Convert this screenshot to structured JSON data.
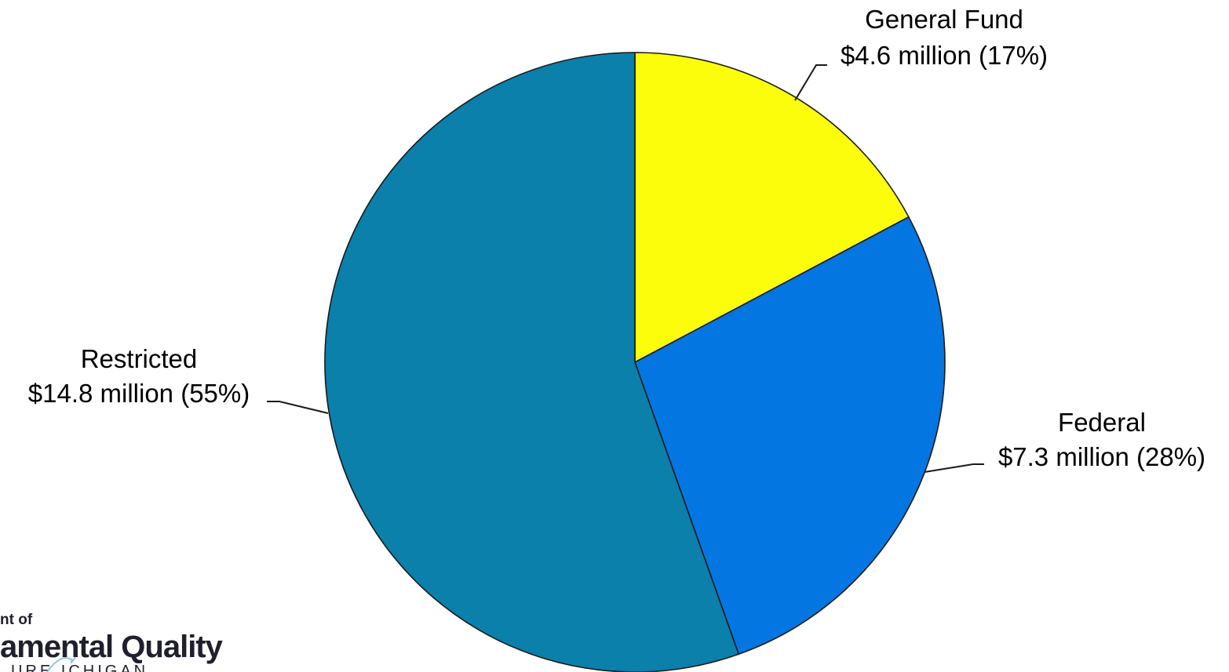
{
  "chart_data": {
    "type": "pie",
    "slices": [
      {
        "label": "General Fund",
        "value_text": "$4.6 million (17%)",
        "value": 4.6,
        "percent": 17,
        "color": "#fbfd0a"
      },
      {
        "label": "Federal",
        "value_text": "$7.3 million (28%)",
        "value": 7.3,
        "percent": 28,
        "color": "#0476e2"
      },
      {
        "label": "Restricted",
        "value_text": "$14.8 million (55%)",
        "value": 14.8,
        "percent": 55,
        "color": "#0a80ab"
      }
    ],
    "start_angle": "12 o'clock",
    "direction": "clockwise",
    "units": "million dollars"
  },
  "logo": {
    "line1": "nt of",
    "line2": "amental Quality",
    "line3": "URE ICHIGAN"
  }
}
